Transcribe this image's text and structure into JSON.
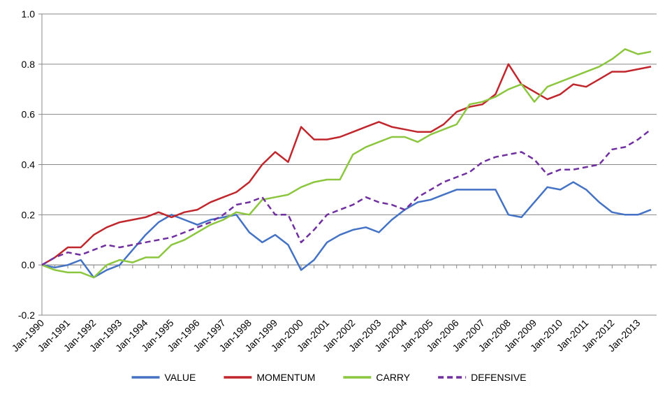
{
  "chart_data": {
    "type": "line",
    "categories": [
      "Jan-1990",
      null,
      "Jan-1991",
      null,
      "Jan-1992",
      null,
      "Jan-1993",
      null,
      "Jan-1994",
      null,
      "Jan-1995",
      null,
      "Jan-1996",
      null,
      "Jan-1997",
      null,
      "Jan-1998",
      null,
      "Jan-1999",
      null,
      "Jan-2000",
      null,
      "Jan-2001",
      null,
      "Jan-2002",
      null,
      "Jan-2003",
      null,
      "Jan-2004",
      null,
      "Jan-2005",
      null,
      "Jan-2006",
      null,
      "Jan-2007",
      null,
      "Jan-2008",
      null,
      "Jan-2009",
      null,
      "Jan-2010",
      null,
      "Jan-2011",
      null,
      "Jan-2012",
      null,
      "Jan-2013",
      null
    ],
    "series": [
      {
        "name": "VALUE",
        "color": "#4472c4",
        "style": "solid",
        "values": [
          0.0,
          -0.01,
          0.0,
          0.02,
          -0.05,
          -0.02,
          0.0,
          0.06,
          0.12,
          0.17,
          0.2,
          0.18,
          0.16,
          0.18,
          0.19,
          0.2,
          0.13,
          0.09,
          0.12,
          0.08,
          -0.02,
          0.02,
          0.09,
          0.12,
          0.14,
          0.15,
          0.13,
          0.18,
          0.22,
          0.25,
          0.26,
          0.28,
          0.3,
          0.3,
          0.3,
          0.3,
          0.2,
          0.19,
          0.25,
          0.31,
          0.3,
          0.33,
          0.3,
          0.25,
          0.21,
          0.2,
          0.2,
          0.22
        ]
      },
      {
        "name": "MOMENTUM",
        "color": "#c0272d",
        "style": "solid",
        "values": [
          0.0,
          0.03,
          0.07,
          0.07,
          0.12,
          0.15,
          0.17,
          0.18,
          0.19,
          0.21,
          0.19,
          0.21,
          0.22,
          0.25,
          0.27,
          0.29,
          0.33,
          0.4,
          0.45,
          0.41,
          0.55,
          0.5,
          0.5,
          0.51,
          0.53,
          0.55,
          0.57,
          0.55,
          0.54,
          0.53,
          0.53,
          0.56,
          0.61,
          0.63,
          0.64,
          0.68,
          0.8,
          0.72,
          0.69,
          0.66,
          0.68,
          0.72,
          0.71,
          0.74,
          0.77,
          0.77,
          0.78,
          0.79
        ]
      },
      {
        "name": "CARRY",
        "color": "#8cc63f",
        "style": "solid",
        "values": [
          0.0,
          -0.02,
          -0.03,
          -0.03,
          -0.05,
          0.0,
          0.02,
          0.01,
          0.03,
          0.03,
          0.08,
          0.1,
          0.13,
          0.16,
          0.18,
          0.21,
          0.2,
          0.26,
          0.27,
          0.28,
          0.31,
          0.33,
          0.34,
          0.34,
          0.44,
          0.47,
          0.49,
          0.51,
          0.51,
          0.49,
          0.52,
          0.54,
          0.56,
          0.64,
          0.65,
          0.67,
          0.7,
          0.72,
          0.65,
          0.71,
          0.73,
          0.75,
          0.77,
          0.79,
          0.82,
          0.86,
          0.84,
          0.85
        ]
      },
      {
        "name": "DEFENSIVE",
        "color": "#7030a0",
        "style": "dashed",
        "values": [
          0.0,
          0.03,
          0.05,
          0.04,
          0.06,
          0.08,
          0.07,
          0.08,
          0.09,
          0.1,
          0.11,
          0.13,
          0.15,
          0.17,
          0.2,
          0.24,
          0.25,
          0.27,
          0.2,
          0.2,
          0.09,
          0.14,
          0.2,
          0.22,
          0.24,
          0.27,
          0.25,
          0.24,
          0.22,
          0.27,
          0.3,
          0.33,
          0.35,
          0.37,
          0.41,
          0.43,
          0.44,
          0.45,
          0.42,
          0.36,
          0.38,
          0.38,
          0.39,
          0.4,
          0.46,
          0.47,
          0.5,
          0.54
        ]
      }
    ],
    "ylim": [
      -0.2,
      1.0
    ],
    "yticks": [
      -0.2,
      {
        "value": 0,
        "label": "0.0"
      },
      0.2,
      0.4,
      0.6,
      0.8,
      {
        "value": 1,
        "label": "1.0"
      }
    ],
    "grid": true,
    "legend": "bottom"
  }
}
